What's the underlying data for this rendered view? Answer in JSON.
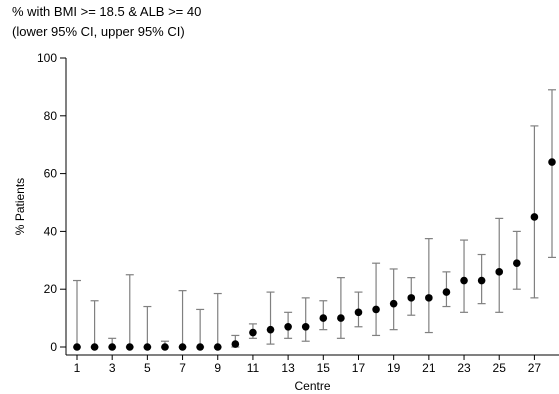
{
  "chart_data": {
    "type": "scatter",
    "title": "% with BMI >= 18.5 & ALB >= 40",
    "subtitle": "(lower 95% CI, upper 95% CI)",
    "xlabel": "Centre",
    "ylabel": "% Patients",
    "xlim": [
      1,
      28
    ],
    "ylim": [
      0,
      100
    ],
    "x_ticks": [
      1,
      3,
      5,
      7,
      9,
      11,
      13,
      15,
      17,
      19,
      21,
      23,
      25,
      27
    ],
    "y_ticks": [
      0,
      20,
      40,
      60,
      80,
      100
    ],
    "grid": false,
    "series": [
      {
        "marker_color": "#000000",
        "errorbar_color": "#808080",
        "points": [
          {
            "x": 1,
            "y": 0,
            "lower": 0,
            "upper": 23
          },
          {
            "x": 2,
            "y": 0,
            "lower": 0,
            "upper": 16
          },
          {
            "x": 3,
            "y": 0,
            "lower": 0,
            "upper": 3
          },
          {
            "x": 4,
            "y": 0,
            "lower": 0,
            "upper": 25
          },
          {
            "x": 5,
            "y": 0,
            "lower": 0,
            "upper": 14
          },
          {
            "x": 6,
            "y": 0,
            "lower": 0,
            "upper": 2
          },
          {
            "x": 7,
            "y": 0,
            "lower": 0,
            "upper": 19.5
          },
          {
            "x": 8,
            "y": 0,
            "lower": 0,
            "upper": 13
          },
          {
            "x": 9,
            "y": 0,
            "lower": 0,
            "upper": 18.5
          },
          {
            "x": 10,
            "y": 1,
            "lower": 0,
            "upper": 4
          },
          {
            "x": 11,
            "y": 5,
            "lower": 3,
            "upper": 8
          },
          {
            "x": 12,
            "y": 6,
            "lower": 1,
            "upper": 19
          },
          {
            "x": 13,
            "y": 7,
            "lower": 3,
            "upper": 12
          },
          {
            "x": 14,
            "y": 7,
            "lower": 2,
            "upper": 17
          },
          {
            "x": 15,
            "y": 10,
            "lower": 6,
            "upper": 16
          },
          {
            "x": 16,
            "y": 10,
            "lower": 3,
            "upper": 24
          },
          {
            "x": 17,
            "y": 12,
            "lower": 7,
            "upper": 19
          },
          {
            "x": 18,
            "y": 13,
            "lower": 4,
            "upper": 29
          },
          {
            "x": 19,
            "y": 15,
            "lower": 6,
            "upper": 27
          },
          {
            "x": 20,
            "y": 17,
            "lower": 11,
            "upper": 24
          },
          {
            "x": 21,
            "y": 17,
            "lower": 5,
            "upper": 37.5
          },
          {
            "x": 22,
            "y": 19,
            "lower": 14,
            "upper": 26
          },
          {
            "x": 23,
            "y": 23,
            "lower": 12,
            "upper": 37
          },
          {
            "x": 24,
            "y": 23,
            "lower": 15,
            "upper": 32
          },
          {
            "x": 25,
            "y": 26,
            "lower": 12,
            "upper": 44.5
          },
          {
            "x": 26,
            "y": 29,
            "lower": 20,
            "upper": 40
          },
          {
            "x": 27,
            "y": 45,
            "lower": 17,
            "upper": 76.5
          },
          {
            "x": 28,
            "y": 64,
            "lower": 31,
            "upper": 89
          }
        ]
      }
    ]
  }
}
